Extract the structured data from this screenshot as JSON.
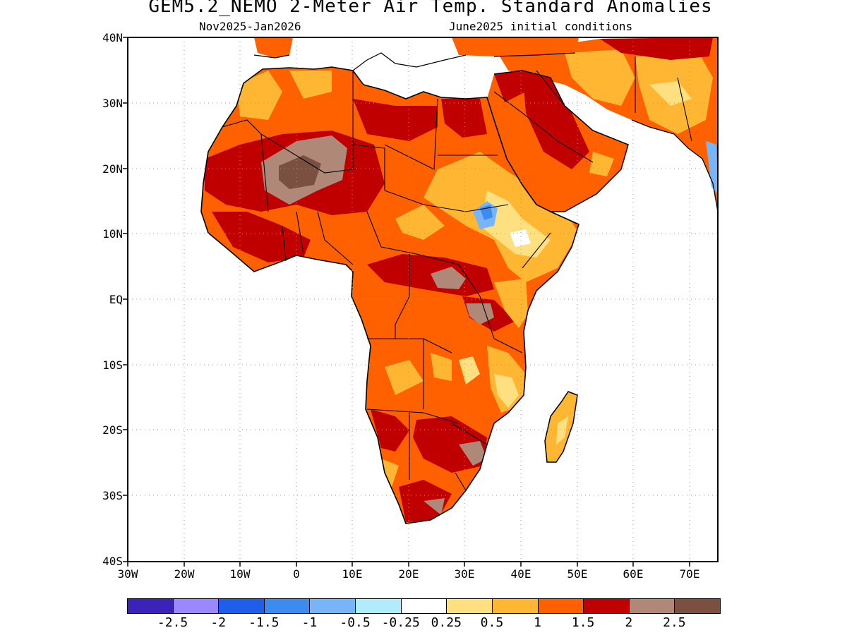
{
  "header": {
    "title": "GEM5.2_NEMO 2-Meter Air Temp. Standard Anomalies",
    "period": "Nov2025-Jan2026",
    "initial_conditions": "June2025 initial conditions"
  },
  "axes": {
    "lat_labels": [
      "40N",
      "30N",
      "20N",
      "10N",
      "EQ",
      "10S",
      "20S",
      "30S",
      "40S"
    ],
    "lon_labels": [
      "30W",
      "20W",
      "10W",
      "0",
      "10E",
      "20E",
      "30E",
      "40E",
      "50E",
      "60E",
      "70E"
    ],
    "lat_range": [
      -40,
      40
    ],
    "lon_range": [
      -30,
      75
    ],
    "grid": "dotted"
  },
  "colorbar": {
    "colors": [
      "#3b22b8",
      "#9b87ff",
      "#1f5ee8",
      "#3c8cf0",
      "#78b4f8",
      "#b0ecfa",
      "#ffffff",
      "#ffe080",
      "#ffb733",
      "#ff6000",
      "#c00000",
      "#b08878",
      "#7a5040"
    ],
    "labels": [
      "-2.5",
      "-2",
      "-1.5",
      "-1",
      "-0.5",
      "-0.25",
      "0.25",
      "0.5",
      "1",
      "1.5",
      "2",
      "2.5"
    ]
  },
  "map_legend_colors": {
    "ocean": "#ffffff",
    "land_base": "#ff6000",
    "coast": "#000000"
  }
}
